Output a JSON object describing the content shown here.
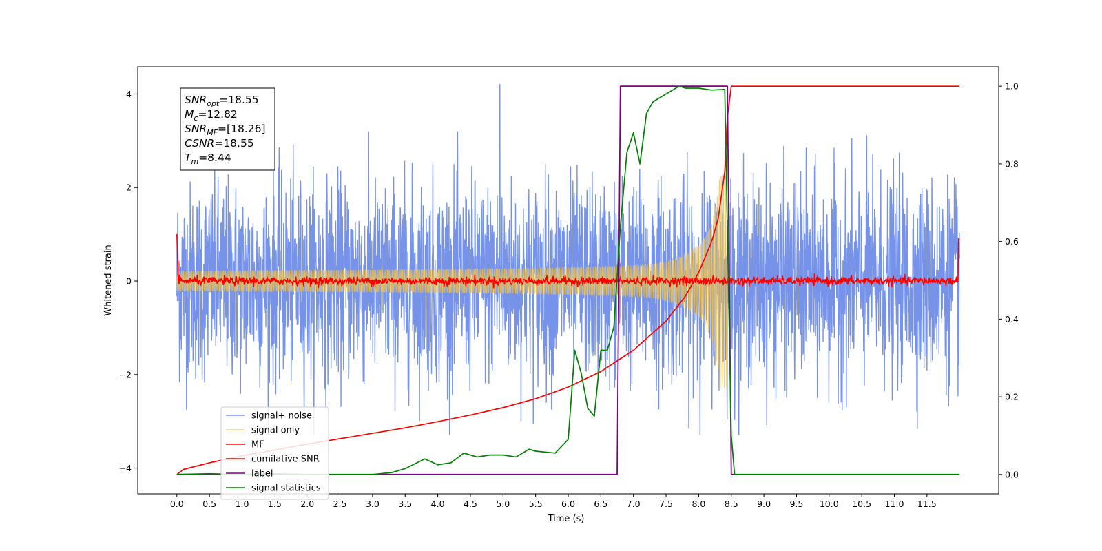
{
  "chart_data": {
    "type": "line",
    "title": "",
    "xlabel": "Time (s)",
    "ylabel": "Whitened strain",
    "xlim": [
      -0.6,
      12.6
    ],
    "ylim": [
      -4.55,
      4.58
    ],
    "y2lim": [
      -0.05,
      1.05
    ],
    "xticks": [
      "0.0",
      "0.5",
      "1.0",
      "1.5",
      "2.0",
      "2.5",
      "3.0",
      "3.5",
      "4.0",
      "4.5",
      "5.0",
      "5.5",
      "6.0",
      "6.5",
      "7.0",
      "7.5",
      "8.0",
      "8.5",
      "9.0",
      "9.5",
      "10.0",
      "10.5",
      "11.0",
      "11.5"
    ],
    "yticks": [
      "-4",
      "-2",
      "0",
      "2",
      "4"
    ],
    "y2ticks": [
      "0.0",
      "0.2",
      "0.4",
      "0.6",
      "0.8",
      "1.0"
    ],
    "legend_position": "lower-left",
    "series": [
      {
        "name": "signal+ noise",
        "color": "#4169e1",
        "axis": "left",
        "kind": "noisy_band",
        "x_range": [
          0.0,
          12.0
        ],
        "spread": 1.05,
        "peak": 4.2
      },
      {
        "name": "signal only",
        "color": "#f6c445",
        "axis": "left",
        "kind": "chirp",
        "merger_time": 8.44,
        "peak_amplitude": 2.3
      },
      {
        "name": "MF",
        "color": "#ff0000",
        "axis": "left",
        "kind": "noise_near_zero",
        "x_range": [
          0.0,
          12.0
        ],
        "edge_values": [
          1.0,
          0.9
        ]
      },
      {
        "name": "cumilative SNR",
        "color": "#ff0000",
        "axis": "right",
        "x": [
          0.0,
          0.1,
          0.5,
          1.0,
          1.5,
          2.0,
          2.5,
          3.0,
          3.5,
          4.0,
          4.5,
          5.0,
          5.5,
          6.0,
          6.5,
          7.0,
          7.5,
          7.8,
          8.0,
          8.2,
          8.3,
          8.4,
          8.44,
          8.5,
          12.0
        ],
        "y": [
          0.0,
          0.013,
          0.03,
          0.048,
          0.063,
          0.078,
          0.092,
          0.106,
          0.12,
          0.136,
          0.153,
          0.172,
          0.195,
          0.225,
          0.265,
          0.32,
          0.395,
          0.46,
          0.52,
          0.6,
          0.66,
          0.78,
          0.92,
          1.0,
          1.0
        ]
      },
      {
        "name": "label",
        "color": "#800080",
        "axis": "right",
        "x": [
          0.0,
          6.75,
          6.8,
          8.44,
          8.5,
          12.0
        ],
        "y": [
          0.0,
          0.0,
          1.0,
          1.0,
          0.0,
          0.0
        ]
      },
      {
        "name": "signal statistics",
        "color": "#008000",
        "axis": "right",
        "x": [
          0.0,
          0.5,
          1.0,
          1.5,
          2.0,
          2.5,
          3.0,
          3.3,
          3.5,
          3.8,
          4.0,
          4.2,
          4.4,
          4.6,
          4.8,
          5.0,
          5.2,
          5.4,
          5.5,
          5.8,
          6.0,
          6.1,
          6.2,
          6.3,
          6.4,
          6.5,
          6.6,
          6.7,
          6.8,
          6.9,
          7.0,
          7.1,
          7.2,
          7.3,
          7.4,
          7.5,
          7.6,
          7.7,
          7.8,
          8.0,
          8.2,
          8.4,
          8.5,
          8.55,
          9.0,
          10.0,
          11.0,
          12.0
        ],
        "y": [
          0.0,
          0.002,
          0.0,
          0.002,
          0.0,
          0.0,
          0.0,
          0.005,
          0.015,
          0.04,
          0.025,
          0.03,
          0.055,
          0.045,
          0.05,
          0.05,
          0.045,
          0.065,
          0.06,
          0.055,
          0.09,
          0.32,
          0.26,
          0.17,
          0.15,
          0.32,
          0.32,
          0.38,
          0.64,
          0.83,
          0.88,
          0.8,
          0.93,
          0.96,
          0.97,
          0.98,
          0.99,
          1.0,
          0.995,
          0.995,
          0.99,
          0.992,
          0.1,
          0.0,
          0.0,
          0.0,
          0.0,
          0.0
        ]
      }
    ],
    "annotation": {
      "lines": [
        {
          "sym": "SNR",
          "sub": "opt",
          "rest": "=18.55"
        },
        {
          "sym": "M",
          "sub": "c",
          "rest": "=12.82"
        },
        {
          "sym": "SNR",
          "sub": "MF",
          "rest": "=[18.26]"
        },
        {
          "sym": "CSNR",
          "sub": "",
          "rest": "=18.55"
        },
        {
          "sym": "T",
          "sub": "m",
          "rest": "=8.44"
        }
      ]
    }
  }
}
